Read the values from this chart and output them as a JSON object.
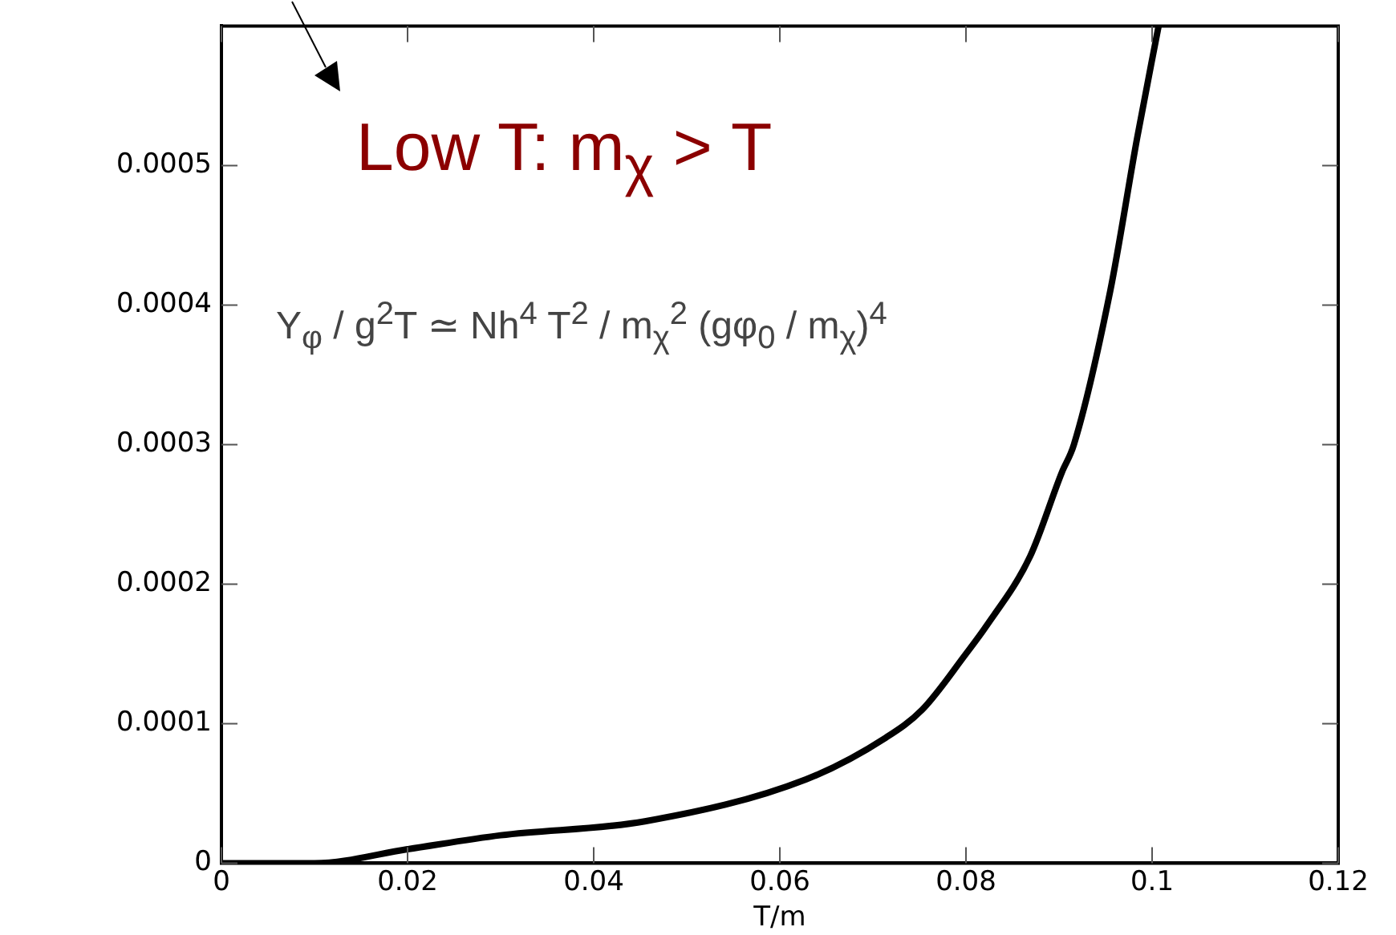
{
  "chart_data": {
    "type": "line",
    "xlabel": "T/m",
    "x": [
      0,
      0.01,
      0.02,
      0.03,
      0.0455,
      0.0628,
      0.0714,
      0.0753,
      0.08,
      0.0822,
      0.0869,
      0.0903,
      0.0916,
      0.0955,
      0.0984,
      0.1007
    ],
    "series": [
      {
        "color": "#000000",
        "values": [
          0,
          0,
          1e-05,
          2e-05,
          3e-05,
          6e-05,
          9e-05,
          0.00011,
          0.00015,
          0.00017,
          0.00022,
          0.00028,
          0.0003,
          0.00041,
          0.00052,
          0.0006
        ]
      }
    ],
    "xlim": [
      0,
      0.12
    ],
    "xticks": [
      0,
      0.02,
      0.04,
      0.06,
      0.08,
      0.1,
      0.12
    ],
    "ylim": [
      0,
      0.0006
    ],
    "yticks": [
      0,
      0.0001,
      0.0002,
      0.0003,
      0.0004,
      0.0005
    ],
    "grid": false,
    "legend": false,
    "marker": "none",
    "line_style": "solid",
    "annotations": [
      "Low T:  m$_{χ}$ > T",
      "Y$_{φ}$ / g$^{2}$T ≃ Nh$^{4}$ T$^{2}$ / m$_{χ}$$^{2}$ (gφ$_{0}$ / m$_{χ}$)$^{4}$"
    ]
  }
}
